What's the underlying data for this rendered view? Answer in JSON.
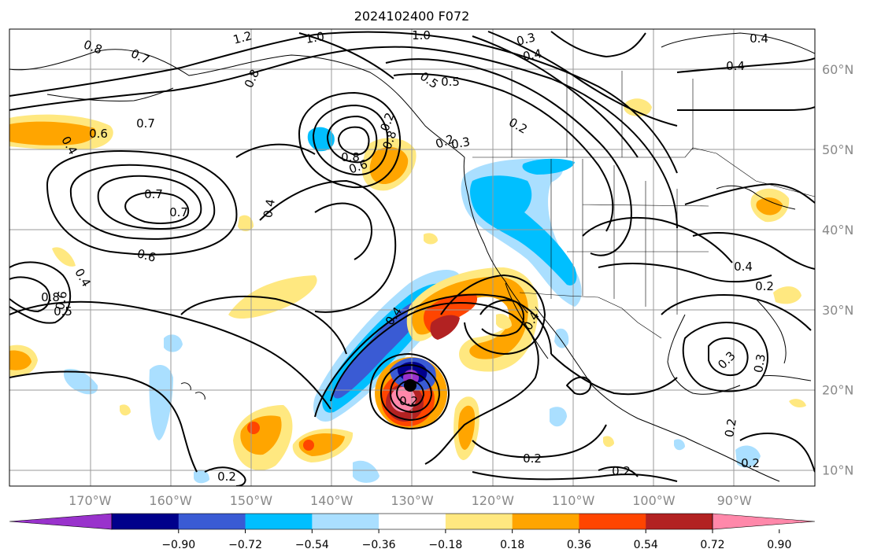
{
  "title": "2024102400 F072",
  "map": {
    "lon_range": [
      -180,
      -80
    ],
    "lat_range": [
      8,
      65
    ],
    "lon_ticks": [
      "170°W",
      "160°W",
      "150°W",
      "140°W",
      "130°W",
      "120°W",
      "110°W",
      "100°W",
      "90°W"
    ],
    "lat_ticks": [
      "60°N",
      "50°N",
      "40°N",
      "30°N",
      "20°N",
      "10°N"
    ],
    "gridlines": true
  },
  "colorbar": {
    "colors": [
      "#9932cc",
      "#00008b",
      "#3a5bd4",
      "#00bfff",
      "#aadfff",
      "#ffffff",
      "#ffe880",
      "#ffa500",
      "#ff4500",
      "#b22222",
      "#ff88aa"
    ],
    "ticks": [
      "−0.90",
      "−0.72",
      "−0.54",
      "−0.36",
      "−0.18",
      "0.18",
      "0.36",
      "0.54",
      "0.72",
      "0.90"
    ],
    "extend": "both"
  },
  "contour_labels": [
    "0.8",
    "0.7",
    "1.2",
    "1.0",
    "1.0",
    "0.3",
    "0.4",
    "0.5",
    "0.5",
    "0.4",
    "0.2",
    "0.3",
    "0.2",
    "0.6",
    "0.7",
    "0.4",
    "0.8",
    "0.8",
    "0.6",
    "0.8",
    "0.7",
    "0.7",
    "0.6",
    "0.4",
    "0.2",
    "0.4",
    "0.8",
    "0.6",
    "0.5",
    "0.4",
    "0.4",
    "0.4",
    "0.2",
    "0.3",
    "0.3",
    "0.2",
    "0.2",
    "0.2",
    "0.2",
    "0.2",
    "0.2",
    "0.4"
  ]
}
